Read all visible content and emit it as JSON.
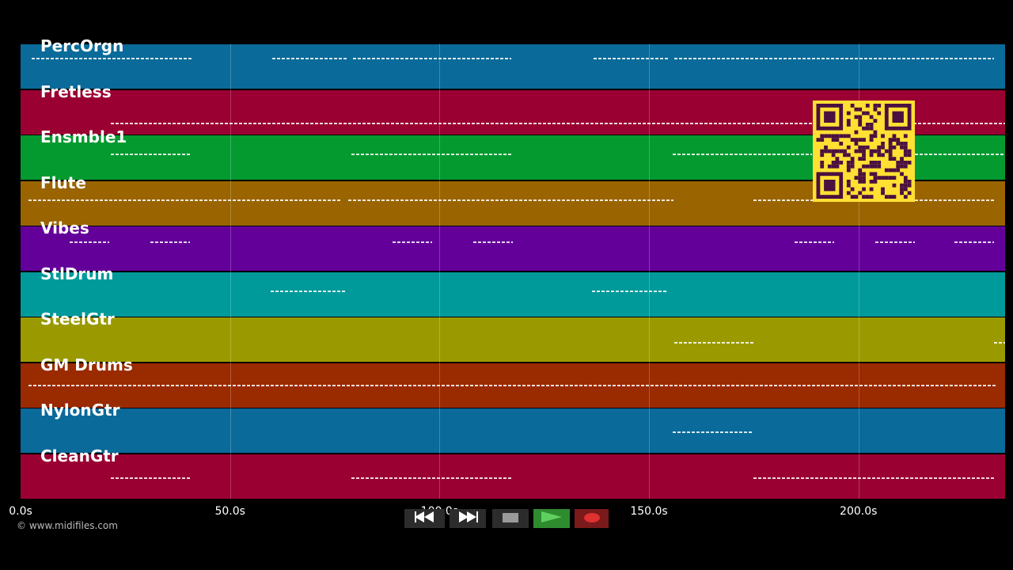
{
  "tracks": [
    {
      "name": "PercOrgn",
      "color": "#0a6a9a"
    },
    {
      "name": "Fretless",
      "color": "#9a0032"
    },
    {
      "name": "Ensmble1",
      "color": "#049a30"
    },
    {
      "name": "Flute",
      "color": "#9a6400"
    },
    {
      "name": "Vibes",
      "color": "#64009a"
    },
    {
      "name": "StlDrum",
      "color": "#009a9a"
    },
    {
      "name": "SteelGtr",
      "color": "#9a9a00"
    },
    {
      "name": "GM Drums",
      "color": "#9a2a00"
    },
    {
      "name": "NylonGtr",
      "color": "#0a6a9a"
    },
    {
      "name": "CleanGtr",
      "color": "#9a0032"
    }
  ],
  "timeline": {
    "ticks": [
      "0.0s",
      "50.0s",
      "100.0s",
      "150.0s",
      "200.0s"
    ],
    "tick_values": [
      0,
      50,
      100,
      150,
      200
    ],
    "max_seconds": 235
  },
  "copyright": "© www.midifiles.com",
  "transport": {
    "rewind_icon": "rewind-icon",
    "forward_icon": "fast-forward-icon",
    "stop_icon": "stop-icon",
    "play_icon": "play-icon",
    "record_icon": "record-icon",
    "play_color": "#2e8b2e",
    "record_color": "#7a1a1a"
  },
  "qr_code": {
    "color": "#ffe033",
    "dark": "#4a1040"
  }
}
